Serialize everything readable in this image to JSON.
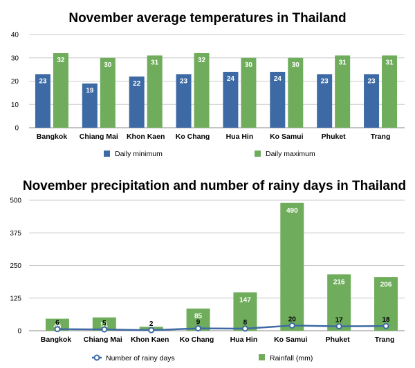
{
  "chart_data": [
    {
      "type": "bar",
      "title": "November average temperatures in Thailand",
      "categories": [
        "Bangkok",
        "Chiang Mai",
        "Khon Kaen",
        "Ko Chang",
        "Hua Hin",
        "Ko Samui",
        "Phuket",
        "Trang"
      ],
      "series": [
        {
          "name": "Daily minimum",
          "color": "#3d6aa5",
          "values": [
            23,
            19,
            22,
            23,
            24,
            24,
            23,
            23
          ]
        },
        {
          "name": "Daily maximum",
          "color": "#6fad5c",
          "values": [
            32,
            30,
            31,
            32,
            30,
            30,
            31,
            31
          ]
        }
      ],
      "yticks": [
        0,
        10,
        20,
        30,
        40
      ],
      "ylim": [
        0,
        40
      ],
      "xlabel": "",
      "ylabel": "",
      "legend": "bottom"
    },
    {
      "type": "bar+line",
      "title": "November precipitation and number of rainy days in Thailand",
      "categories": [
        "Bangkok",
        "Chiang Mai",
        "Khon Kaen",
        "Ko Chang",
        "Hua Hin",
        "Ko Samui",
        "Phuket",
        "Trang"
      ],
      "bar_series": {
        "name": "Rainfall (mm)",
        "color": "#6fad5c",
        "values": [
          46,
          51,
          15,
          85,
          147,
          490,
          216,
          206
        ]
      },
      "line_series": {
        "name": "Number of rainy days",
        "color": "#3d6aa5",
        "values": [
          6,
          5,
          2,
          9,
          8,
          20,
          17,
          18
        ]
      },
      "yticks": [
        0,
        125,
        250,
        375,
        500
      ],
      "ylim": [
        0,
        500
      ],
      "xlabel": "",
      "ylabel": "",
      "legend": "bottom"
    }
  ]
}
